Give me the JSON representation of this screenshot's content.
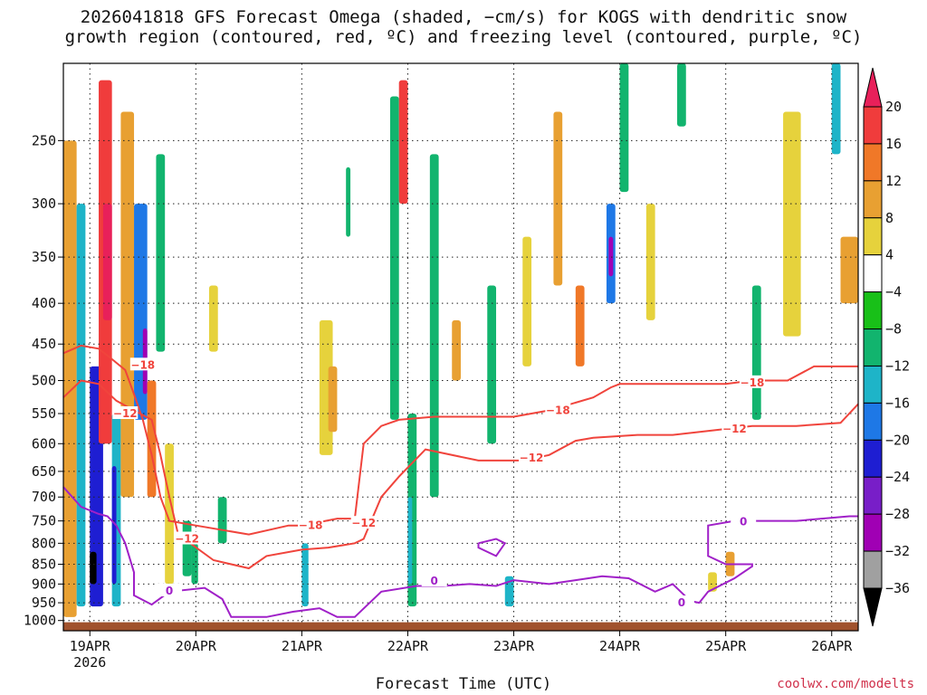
{
  "title": "2026041818 GFS Forecast Omega (shaded, −cm/s) for KOGS with dendritic snow\ngrowth region (contoured, red, ºC) and freezing level (contoured, purple, ºC)",
  "xlabel": "Forecast Time (UTC)",
  "credit": "coolwx.com/modelts",
  "chart_data": {
    "type": "heatmap",
    "title": "2026041818 GFS Forecast Omega (shaded, −cm/s) for KOGS with dendritic snow growth region (contoured, red, ºC) and freezing level (contoured, purple, ºC)",
    "xlabel": "Forecast Time (UTC)",
    "ylabel": "",
    "x_ticks": [
      {
        "label": "19APR",
        "sub": "2026",
        "t": 0
      },
      {
        "label": "20APR",
        "t": 24
      },
      {
        "label": "21APR",
        "t": 48
      },
      {
        "label": "22APR",
        "t": 72
      },
      {
        "label": "23APR",
        "t": 96
      },
      {
        "label": "24APR",
        "t": 120
      },
      {
        "label": "25APR",
        "t": 144
      },
      {
        "label": "26APR",
        "t": 168
      }
    ],
    "xlim": [
      -6,
      174
    ],
    "y_ticks": [
      250,
      300,
      350,
      400,
      450,
      500,
      550,
      600,
      650,
      700,
      750,
      800,
      850,
      900,
      950,
      1000
    ],
    "ylim": [
      200,
      1030
    ],
    "y_scale": "log-pressure",
    "colorbar": {
      "labels": [
        "20",
        "16",
        "12",
        "8",
        "4",
        "−4",
        "−8",
        "−12",
        "−16",
        "−20",
        "−24",
        "−28",
        "−32",
        "−36"
      ],
      "colors": [
        "#e8205a",
        "#f03c3c",
        "#f07828",
        "#e8a032",
        "#e6d23c",
        "#ffffff",
        "#18c018",
        "#12b46e",
        "#1eb4c8",
        "#1e78e6",
        "#1e1ed2",
        "#781ec8",
        "#a000b4",
        "#a0a0a0",
        "#000000"
      ]
    },
    "omega_cells": [
      {
        "t": [
          -6,
          -3
        ],
        "p": [
          250,
          990
        ],
        "v": 8
      },
      {
        "t": [
          -3,
          -1
        ],
        "p": [
          300,
          960
        ],
        "v": -12
      },
      {
        "t": [
          0,
          3
        ],
        "p": [
          480,
          960
        ],
        "v": -20
      },
      {
        "t": [
          0,
          1.5
        ],
        "p": [
          820,
          900
        ],
        "v": -36
      },
      {
        "t": [
          2,
          5
        ],
        "p": [
          210,
          600
        ],
        "v": 16
      },
      {
        "t": [
          3,
          5
        ],
        "p": [
          300,
          420
        ],
        "v": 20
      },
      {
        "t": [
          5,
          7
        ],
        "p": [
          550,
          960
        ],
        "v": -12
      },
      {
        "t": [
          5,
          6
        ],
        "p": [
          640,
          900
        ],
        "v": -20
      },
      {
        "t": [
          7,
          10
        ],
        "p": [
          230,
          700
        ],
        "v": 8
      },
      {
        "t": [
          10,
          13
        ],
        "p": [
          300,
          560
        ],
        "v": -16
      },
      {
        "t": [
          12,
          13
        ],
        "p": [
          430,
          520
        ],
        "v": -28
      },
      {
        "t": [
          13,
          15
        ],
        "p": [
          500,
          700
        ],
        "v": 12
      },
      {
        "t": [
          15,
          17
        ],
        "p": [
          260,
          460
        ],
        "v": -8
      },
      {
        "t": [
          17,
          19
        ],
        "p": [
          600,
          900
        ],
        "v": 4
      },
      {
        "t": [
          21,
          23
        ],
        "p": [
          750,
          880
        ],
        "v": -8
      },
      {
        "t": [
          23,
          24.5
        ],
        "p": [
          800,
          900
        ],
        "v": -8
      },
      {
        "t": [
          27,
          29
        ],
        "p": [
          380,
          460
        ],
        "v": 4
      },
      {
        "t": [
          29,
          31
        ],
        "p": [
          700,
          800
        ],
        "v": -8
      },
      {
        "t": [
          48,
          49.5
        ],
        "p": [
          800,
          960
        ],
        "v": -12
      },
      {
        "t": [
          52,
          55
        ],
        "p": [
          420,
          620
        ],
        "v": 4
      },
      {
        "t": [
          54,
          56
        ],
        "p": [
          480,
          580
        ],
        "v": 8
      },
      {
        "t": [
          58,
          59
        ],
        "p": [
          270,
          330
        ],
        "v": -8
      },
      {
        "t": [
          68,
          70
        ],
        "p": [
          220,
          560
        ],
        "v": -8
      },
      {
        "t": [
          70,
          72
        ],
        "p": [
          210,
          300
        ],
        "v": 16
      },
      {
        "t": [
          72,
          74
        ],
        "p": [
          550,
          960
        ],
        "v": -8
      },
      {
        "t": [
          72,
          73
        ],
        "p": [
          700,
          900
        ],
        "v": -12
      },
      {
        "t": [
          77,
          79
        ],
        "p": [
          260,
          700
        ],
        "v": -8
      },
      {
        "t": [
          82,
          84
        ],
        "p": [
          420,
          500
        ],
        "v": 8
      },
      {
        "t": [
          90,
          92
        ],
        "p": [
          380,
          600
        ],
        "v": -8
      },
      {
        "t": [
          94,
          96
        ],
        "p": [
          880,
          960
        ],
        "v": -12
      },
      {
        "t": [
          98,
          100
        ],
        "p": [
          330,
          480
        ],
        "v": 4
      },
      {
        "t": [
          105,
          107
        ],
        "p": [
          230,
          380
        ],
        "v": 8
      },
      {
        "t": [
          110,
          112
        ],
        "p": [
          380,
          480
        ],
        "v": 12
      },
      {
        "t": [
          117,
          119
        ],
        "p": [
          300,
          400
        ],
        "v": -16
      },
      {
        "t": [
          117.5,
          118.5
        ],
        "p": [
          330,
          370
        ],
        "v": -28
      },
      {
        "t": [
          120,
          122
        ],
        "p": [
          200,
          290
        ],
        "v": -8
      },
      {
        "t": [
          126,
          128
        ],
        "p": [
          300,
          420
        ],
        "v": 4
      },
      {
        "t": [
          133,
          135
        ],
        "p": [
          200,
          240
        ],
        "v": -8
      },
      {
        "t": [
          140,
          142
        ],
        "p": [
          870,
          920
        ],
        "v": 4
      },
      {
        "t": [
          144,
          146
        ],
        "p": [
          820,
          880
        ],
        "v": 8
      },
      {
        "t": [
          150,
          152
        ],
        "p": [
          380,
          560
        ],
        "v": -8
      },
      {
        "t": [
          157,
          161
        ],
        "p": [
          230,
          440
        ],
        "v": 4
      },
      {
        "t": [
          168,
          170
        ],
        "p": [
          200,
          260
        ],
        "v": -12
      },
      {
        "t": [
          170,
          174
        ],
        "p": [
          330,
          400
        ],
        "v": 8
      }
    ],
    "contours": [
      {
        "label": "−18",
        "color": "#f0443c",
        "points": [
          [
            -6,
            462
          ],
          [
            -2,
            452
          ],
          [
            2,
            456
          ],
          [
            5,
            470
          ],
          [
            8,
            485
          ],
          [
            10,
            520
          ],
          [
            12,
            560
          ],
          [
            14,
            620
          ],
          [
            16,
            700
          ],
          [
            18,
            750
          ],
          [
            24,
            760
          ],
          [
            36,
            780
          ],
          [
            45,
            760
          ],
          [
            48,
            760
          ],
          [
            56,
            745
          ],
          [
            60,
            745
          ],
          [
            62,
            600
          ],
          [
            66,
            570
          ],
          [
            70,
            560
          ],
          [
            78,
            555
          ],
          [
            96,
            555
          ],
          [
            104,
            545
          ],
          [
            114,
            525
          ],
          [
            118,
            510
          ],
          [
            120,
            505
          ],
          [
            132,
            505
          ],
          [
            144,
            505
          ],
          [
            150,
            500
          ],
          [
            158,
            500
          ],
          [
            164,
            480
          ],
          [
            174,
            480
          ]
        ],
        "labels": [
          {
            "t": 12,
            "p": 478
          },
          {
            "t": 150,
            "p": 503
          },
          {
            "t": 50,
            "p": 760
          },
          {
            "t": 106,
            "p": 545
          }
        ]
      },
      {
        "label": "−12",
        "color": "#f0443c",
        "points": [
          [
            -6,
            525
          ],
          [
            -2,
            500
          ],
          [
            2,
            505
          ],
          [
            6,
            530
          ],
          [
            10,
            545
          ],
          [
            14,
            560
          ],
          [
            16,
            620
          ],
          [
            18,
            700
          ],
          [
            20,
            780
          ],
          [
            28,
            840
          ],
          [
            36,
            860
          ],
          [
            40,
            830
          ],
          [
            48,
            815
          ],
          [
            54,
            810
          ],
          [
            60,
            800
          ],
          [
            62,
            790
          ],
          [
            66,
            700
          ],
          [
            70,
            660
          ],
          [
            76,
            610
          ],
          [
            88,
            630
          ],
          [
            98,
            630
          ],
          [
            104,
            620
          ],
          [
            110,
            595
          ],
          [
            114,
            590
          ],
          [
            124,
            585
          ],
          [
            132,
            585
          ],
          [
            144,
            575
          ],
          [
            150,
            570
          ],
          [
            160,
            570
          ],
          [
            170,
            565
          ],
          [
            174,
            535
          ]
        ],
        "labels": [
          {
            "t": 8,
            "p": 550
          },
          {
            "t": 22,
            "p": 790
          },
          {
            "t": 100,
            "p": 625
          },
          {
            "t": 146,
            "p": 575
          },
          {
            "t": 62,
            "p": 755
          }
        ]
      },
      {
        "label": "0",
        "color": "#a020c8",
        "points": [
          [
            -6,
            680
          ],
          [
            -2,
            720
          ],
          [
            2,
            735
          ],
          [
            4,
            740
          ],
          [
            6,
            760
          ],
          [
            8,
            800
          ],
          [
            10,
            870
          ],
          [
            10,
            930
          ],
          [
            14,
            955
          ],
          [
            18,
            920
          ],
          [
            26,
            910
          ],
          [
            30,
            940
          ],
          [
            32,
            990
          ],
          [
            40,
            990
          ],
          [
            46,
            975
          ],
          [
            52,
            965
          ],
          [
            56,
            990
          ],
          [
            60,
            990
          ],
          [
            66,
            920
          ],
          [
            74,
            905
          ],
          [
            80,
            905
          ],
          [
            86,
            900
          ],
          [
            92,
            905
          ],
          [
            96,
            890
          ],
          [
            104,
            900
          ],
          [
            110,
            890
          ],
          [
            116,
            880
          ],
          [
            122,
            885
          ],
          [
            128,
            920
          ],
          [
            132,
            900
          ],
          [
            136,
            945
          ],
          [
            138,
            950
          ],
          [
            140,
            920
          ],
          [
            146,
            885
          ],
          [
            150,
            855
          ],
          [
            150,
            850
          ],
          [
            144,
            850
          ],
          [
            140,
            830
          ],
          [
            140,
            760
          ],
          [
            146,
            750
          ],
          [
            160,
            750
          ],
          [
            172,
            740
          ],
          [
            174,
            740
          ]
        ],
        "labels": [
          {
            "t": 18,
            "p": 918
          },
          {
            "t": 78,
            "p": 892
          },
          {
            "t": 134,
            "p": 950
          },
          {
            "t": 148,
            "p": 752
          }
        ]
      },
      {
        "label": "0",
        "color": "#a020c8",
        "points": [
          [
            88,
            800
          ],
          [
            92,
            790
          ],
          [
            94,
            800
          ],
          [
            92,
            830
          ],
          [
            88,
            810
          ],
          [
            88,
            800
          ]
        ],
        "labels": []
      }
    ],
    "ground": {
      "p_top": 1005,
      "color": "#a0522d"
    }
  }
}
